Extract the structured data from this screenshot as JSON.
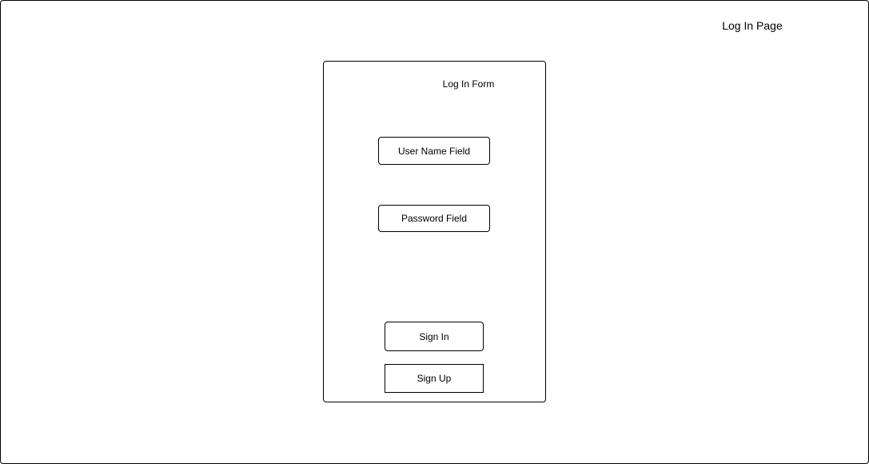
{
  "page": {
    "title": "Log In Page"
  },
  "form": {
    "title": "Log In Form",
    "username_field": "User Name Field",
    "password_field": "Password Field",
    "sign_in": "Sign In",
    "sign_up": "Sign Up"
  }
}
